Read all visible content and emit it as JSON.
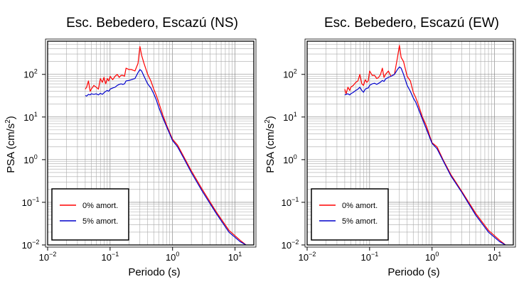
{
  "chart_data": [
    {
      "type": "line",
      "title": "Esc. Bebedero, Escazú (NS)",
      "xlabel": "Periodo (s)",
      "ylabel_base": "PSA (cm/s",
      "ylabel_sup": "2",
      "ylabel_tail": ")",
      "x_scale": "log",
      "y_scale": "log",
      "xlim": [
        0.01,
        20
      ],
      "ylim": [
        0.01,
        600
      ],
      "x_ticks": [
        {
          "base": "10",
          "exp": "−2"
        },
        {
          "base": "10",
          "exp": "−1"
        },
        {
          "base": "10",
          "exp": "0"
        },
        {
          "base": "10",
          "exp": "1"
        }
      ],
      "y_ticks": [
        {
          "base": "10",
          "exp": "−2"
        },
        {
          "base": "10",
          "exp": "−1"
        },
        {
          "base": "10",
          "exp": "0"
        },
        {
          "base": "10",
          "exp": "1"
        },
        {
          "base": "10",
          "exp": "2"
        }
      ],
      "grid": true,
      "legend_position": "bottom-left",
      "series": [
        {
          "name": "0% amort.",
          "color": "#ff0000",
          "x": [
            0.04,
            0.042,
            0.045,
            0.048,
            0.05,
            0.055,
            0.06,
            0.065,
            0.07,
            0.075,
            0.08,
            0.085,
            0.09,
            0.095,
            0.1,
            0.11,
            0.12,
            0.13,
            0.14,
            0.15,
            0.16,
            0.17,
            0.18,
            0.2,
            0.22,
            0.25,
            0.28,
            0.3,
            0.32,
            0.35,
            0.4,
            0.45,
            0.5,
            0.55,
            0.6,
            0.7,
            0.8,
            1.0,
            1.2,
            1.5,
            2.0,
            3.0,
            5.0,
            8.0,
            12.0,
            15.0
          ],
          "y": [
            45,
            50,
            70,
            40,
            45,
            55,
            50,
            45,
            80,
            65,
            85,
            60,
            80,
            70,
            90,
            75,
            90,
            100,
            85,
            95,
            95,
            90,
            140,
            130,
            130,
            120,
            180,
            450,
            280,
            180,
            100,
            70,
            45,
            32,
            22,
            11,
            6.5,
            3,
            2.2,
            1.2,
            0.55,
            0.2,
            0.06,
            0.022,
            0.013,
            0.01
          ]
        },
        {
          "name": "5% amort.",
          "color": "#0000cc",
          "x": [
            0.04,
            0.042,
            0.045,
            0.048,
            0.05,
            0.055,
            0.06,
            0.065,
            0.07,
            0.075,
            0.08,
            0.085,
            0.09,
            0.095,
            0.1,
            0.11,
            0.12,
            0.13,
            0.14,
            0.15,
            0.16,
            0.17,
            0.18,
            0.2,
            0.22,
            0.25,
            0.28,
            0.3,
            0.32,
            0.35,
            0.4,
            0.45,
            0.5,
            0.55,
            0.6,
            0.7,
            0.8,
            1.0,
            1.2,
            1.5,
            2.0,
            3.0,
            5.0,
            8.0,
            12.0,
            15.0
          ],
          "y": [
            32,
            31,
            34,
            33,
            35,
            34,
            35,
            33,
            36,
            34,
            37,
            40,
            42,
            40,
            45,
            48,
            50,
            55,
            58,
            60,
            58,
            60,
            70,
            72,
            75,
            80,
            110,
            130,
            120,
            90,
            60,
            48,
            35,
            25,
            17,
            9.5,
            6,
            2.8,
            2,
            1.1,
            0.5,
            0.18,
            0.055,
            0.02,
            0.012,
            0.01
          ]
        }
      ]
    },
    {
      "type": "line",
      "title": "Esc. Bebedero, Escazú (EW)",
      "xlabel": "Periodo (s)",
      "ylabel_base": "PSA (cm/s",
      "ylabel_sup": "2",
      "ylabel_tail": ")",
      "x_scale": "log",
      "y_scale": "log",
      "xlim": [
        0.01,
        20
      ],
      "ylim": [
        0.01,
        600
      ],
      "x_ticks": [
        {
          "base": "10",
          "exp": "−2"
        },
        {
          "base": "10",
          "exp": "−1"
        },
        {
          "base": "10",
          "exp": "0"
        },
        {
          "base": "10",
          "exp": "1"
        }
      ],
      "y_ticks": [
        {
          "base": "10",
          "exp": "−2"
        },
        {
          "base": "10",
          "exp": "−1"
        },
        {
          "base": "10",
          "exp": "0"
        },
        {
          "base": "10",
          "exp": "1"
        },
        {
          "base": "10",
          "exp": "2"
        }
      ],
      "grid": true,
      "legend_position": "bottom-left",
      "series": [
        {
          "name": "0% amort.",
          "color": "#ff0000",
          "x": [
            0.04,
            0.042,
            0.045,
            0.048,
            0.05,
            0.055,
            0.06,
            0.065,
            0.07,
            0.075,
            0.08,
            0.085,
            0.09,
            0.095,
            0.1,
            0.11,
            0.12,
            0.13,
            0.14,
            0.15,
            0.16,
            0.17,
            0.18,
            0.2,
            0.22,
            0.25,
            0.28,
            0.3,
            0.32,
            0.35,
            0.4,
            0.45,
            0.5,
            0.55,
            0.6,
            0.7,
            0.8,
            1.0,
            1.2,
            1.5,
            2.0,
            3.0,
            5.0,
            8.0,
            12.0,
            15.0
          ],
          "y": [
            45,
            35,
            50,
            42,
            50,
            55,
            65,
            70,
            100,
            60,
            55,
            75,
            65,
            70,
            120,
            95,
            95,
            80,
            85,
            100,
            140,
            85,
            100,
            120,
            90,
            100,
            250,
            480,
            250,
            200,
            90,
            70,
            38,
            28,
            20,
            10,
            6.5,
            2.5,
            2.0,
            1.0,
            0.45,
            0.18,
            0.055,
            0.022,
            0.013,
            0.01
          ]
        },
        {
          "name": "5% amort.",
          "color": "#0000cc",
          "x": [
            0.04,
            0.042,
            0.045,
            0.048,
            0.05,
            0.055,
            0.06,
            0.065,
            0.07,
            0.075,
            0.08,
            0.085,
            0.09,
            0.095,
            0.1,
            0.11,
            0.12,
            0.13,
            0.14,
            0.15,
            0.16,
            0.17,
            0.18,
            0.2,
            0.22,
            0.25,
            0.28,
            0.3,
            0.32,
            0.35,
            0.4,
            0.45,
            0.5,
            0.55,
            0.6,
            0.7,
            0.8,
            1.0,
            1.2,
            1.5,
            2.0,
            3.0,
            5.0,
            8.0,
            12.0,
            15.0
          ],
          "y": [
            33,
            34,
            35,
            33,
            35,
            38,
            42,
            45,
            50,
            42,
            38,
            45,
            47,
            48,
            55,
            60,
            62,
            58,
            62,
            66,
            72,
            68,
            78,
            85,
            90,
            100,
            130,
            150,
            140,
            100,
            55,
            40,
            28,
            22,
            16,
            9,
            5.5,
            2.4,
            1.8,
            0.95,
            0.42,
            0.17,
            0.05,
            0.02,
            0.012,
            0.01
          ]
        }
      ]
    }
  ]
}
